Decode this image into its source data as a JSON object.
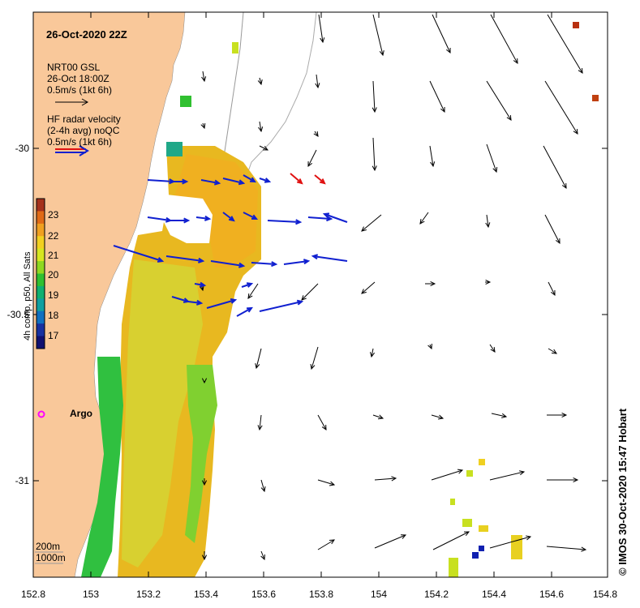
{
  "title": "26-Oct-2020 22Z",
  "legend": {
    "model_name": "NRT00 GSL",
    "model_time": "26-Oct 18:00Z",
    "model_scale": "0.5m/s (1kt 6h)",
    "radar_line1": "HF radar velocity",
    "radar_line2": "(2-4h avg) noQC",
    "radar_scale": "0.5m/s (1kt 6h)"
  },
  "colorbar": {
    "title": "4h comp, p50, All Sats",
    "ticks": [
      "23",
      "22",
      "21",
      "20",
      "19",
      "18",
      "17"
    ],
    "colors": [
      "#a5311b",
      "#e06a16",
      "#f0a020",
      "#f2d020",
      "#d6e620",
      "#8fd820",
      "#30c030",
      "#10b070",
      "#10a0a0",
      "#1070c0",
      "#1830a0",
      "#101070"
    ]
  },
  "argo_label": "Argo",
  "bathymetry": {
    "line1": "200m",
    "line2": "1000m"
  },
  "credit": "© IMOS 30-Oct-2020 15:47 Hobart",
  "x_ticks": [
    "152.8",
    "153",
    "153.2",
    "153.4",
    "153.6",
    "153.8",
    "154",
    "154.2",
    "154.4",
    "154.6",
    "154.8"
  ],
  "y_ticks": [
    "-30",
    "-30.5",
    "-31"
  ],
  "colors": {
    "land": "#f9c89a",
    "model_arrow": "#000000",
    "radar_arrow": "#1020d0",
    "radar_arrow_red": "#e01010",
    "argo": "#ff00ff",
    "bathy": "#999999"
  }
}
